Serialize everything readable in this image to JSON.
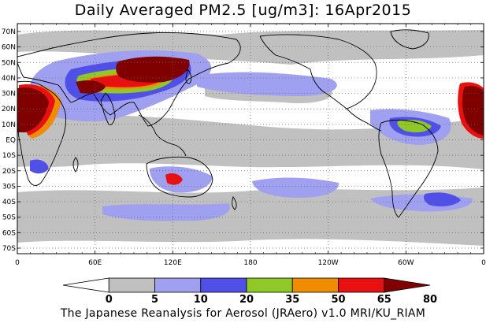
{
  "title": "Daily Averaged PM2.5 [ug/m3]: 16Apr2015",
  "footer": "The Japanese Reanalysis for Aerosol (JRAero) v1.0 MRI/KU_RIAM",
  "lat_labels": [
    "70N",
    "60N",
    "50N",
    "40N",
    "30N",
    "20N",
    "10N",
    "EQ",
    "10S",
    "20S",
    "30S",
    "40S",
    "50S",
    "60S",
    "70S"
  ],
  "lon_labels": [
    "0",
    "60E",
    "120E",
    "180",
    "120W",
    "60W",
    "0"
  ],
  "colorbar": {
    "ticks": [
      "0",
      "5",
      "10",
      "20",
      "35",
      "50",
      "65",
      "80"
    ],
    "colors": [
      "#ffffff",
      "#c0c0c0",
      "#a0a0f0",
      "#5050e8",
      "#90c828",
      "#f08c00",
      "#e81010",
      "#800000"
    ]
  },
  "colors": {
    "gray": "#c0c0c0",
    "light_blue": "#a0a0f0",
    "blue": "#5050e8",
    "green": "#90c828",
    "orange": "#f08c00",
    "red": "#e81010",
    "darkred": "#800000"
  }
}
